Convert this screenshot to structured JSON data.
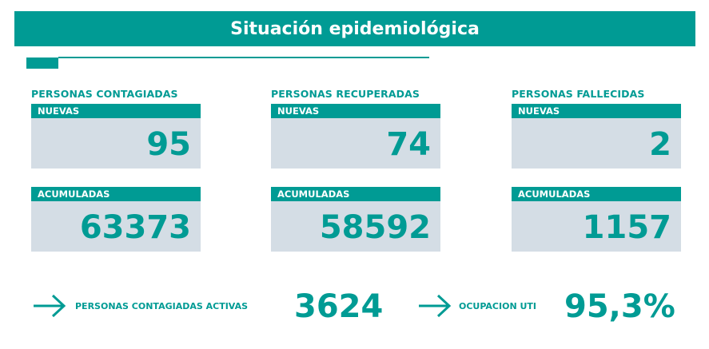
{
  "header": {
    "title": "Situación epidemiológica"
  },
  "columns": [
    {
      "category": "PERSONAS CONTAGIADAS",
      "new_label": "NUEVAS",
      "new_value": "95",
      "acc_label": "ACUMULADAS",
      "acc_value": "63373"
    },
    {
      "category": "PERSONAS RECUPERADAS",
      "new_label": "NUEVAS",
      "new_value": "74",
      "acc_label": "ACUMULADAS",
      "acc_value": "58592"
    },
    {
      "category": "PERSONAS FALLECIDAS",
      "new_label": "NUEVAS",
      "new_value": "2",
      "acc_label": "ACUMULADAS",
      "acc_value": "1157"
    }
  ],
  "bottom": {
    "active_label": "PERSONAS CONTAGIADAS ACTIVAS",
    "active_value": "3624",
    "icu_label": "OCUPACION UTI",
    "icu_value": "95,3%"
  },
  "icons": {
    "arrow": "arrow-right-icon"
  },
  "colors": {
    "accent": "#009b94",
    "box": "#d4dde5"
  }
}
